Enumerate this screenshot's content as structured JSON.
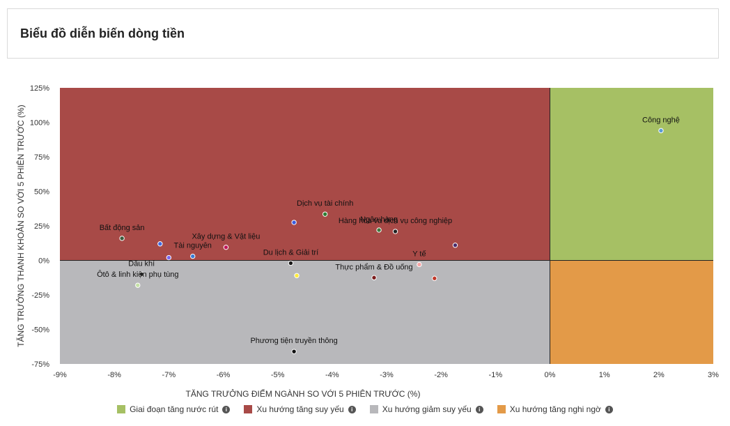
{
  "title": "Biểu đồ diễn biến dòng tiền",
  "colors": {
    "q_top_left": "#a84a47",
    "q_bottom_left": "#b8b8bb",
    "q_top_right": "#a6c064",
    "q_bottom_right": "#e39a48"
  },
  "chart_data": {
    "type": "scatter",
    "xlabel": "TĂNG TRƯỞNG ĐIỂM NGÀNH SO VỚI 5 PHIÊN TRƯỚC (%)",
    "ylabel": "TĂNG TRƯỞNG THANH KHOẢN SO VỚI 5 PHIÊN TRƯỚC (%)",
    "xlim": [
      -9,
      3
    ],
    "ylim": [
      -75,
      125
    ],
    "x_ticks": [
      -9,
      -8,
      -7,
      -6,
      -5,
      -4,
      -3,
      -2,
      -1,
      0,
      1,
      2,
      3
    ],
    "x_tick_labels": [
      "-9%",
      "-8%",
      "-7%",
      "-6%",
      "-5%",
      "-4%",
      "-3%",
      "-2%",
      "-1%",
      "0%",
      "1%",
      "2%",
      "3%"
    ],
    "y_ticks": [
      -75,
      -50,
      -25,
      0,
      25,
      50,
      75,
      100,
      125
    ],
    "y_tick_labels": [
      "-75%",
      "-50%",
      "-25%",
      "0%",
      "25%",
      "50%",
      "75%",
      "100%",
      "125%"
    ],
    "grid": false,
    "legend_position": "bottom",
    "points": [
      {
        "name": "Công nghệ",
        "x": 2.04,
        "y": 94,
        "color": "#5b9bd5"
      },
      {
        "name": "Dịch vụ tài chính",
        "x": -4.13,
        "y": 33.5,
        "color": "#2e7d32"
      },
      {
        "name": "",
        "x": -4.7,
        "y": 27.5,
        "color": "#3b5bdb"
      },
      {
        "name": "Ngân hàng",
        "x": -3.14,
        "y": 22,
        "color": "#3d7a3d"
      },
      {
        "name": "Hàng hóa và dịch vụ công nghiệp",
        "x": -2.84,
        "y": 21,
        "color": "#222222"
      },
      {
        "name": "",
        "x": -1.74,
        "y": 11,
        "color": "#4a2c6b"
      },
      {
        "name": "Bất động sản",
        "x": -7.86,
        "y": 16,
        "color": "#3d5a3d"
      },
      {
        "name": "",
        "x": -7.16,
        "y": 12,
        "color": "#4169e1"
      },
      {
        "name": "Xây dựng & Vật liệu",
        "x": -5.95,
        "y": 9.5,
        "color": "#c2185b"
      },
      {
        "name": "Tài nguyên",
        "x": -6.56,
        "y": 3,
        "color": "#3a7bd5"
      },
      {
        "name": "",
        "x": -7.0,
        "y": 2,
        "color": "#7b68ee"
      },
      {
        "name": "Du lịch & Giải trí",
        "x": -4.76,
        "y": -2,
        "color": "#1a1a1a"
      },
      {
        "name": "Y tế",
        "x": -2.4,
        "y": -3,
        "color": "#f8a5a5"
      },
      {
        "name": "Dầu khí",
        "x": -7.5,
        "y": -10,
        "color": "#333333"
      },
      {
        "name": "",
        "x": -4.65,
        "y": -11,
        "color": "#ffeb3b"
      },
      {
        "name": "Thực phẩm & Đồ uống",
        "x": -3.23,
        "y": -12.5,
        "color": "#7b1d1d"
      },
      {
        "name": "",
        "x": -2.12,
        "y": -13,
        "color": "#c0392b"
      },
      {
        "name": "Ôtô & linh kiện phụ tùng",
        "x": -7.57,
        "y": -18,
        "color": "#c5e1a5"
      },
      {
        "name": "Phương tiện truyền thông",
        "x": -4.7,
        "y": -66,
        "color": "#111111"
      }
    ]
  },
  "legend": [
    {
      "label": "Giai đoạn tăng nước rút",
      "color": "#a6c064",
      "icon": "info-icon"
    },
    {
      "label": "Xu hướng tăng suy yếu",
      "color": "#a84a47",
      "icon": "info-icon"
    },
    {
      "label": "Xu hướng giảm suy yếu",
      "color": "#b8b8bb",
      "icon": "info-icon"
    },
    {
      "label": "Xu hướng tăng nghi ngờ",
      "color": "#e39a48",
      "icon": "info-icon"
    }
  ]
}
